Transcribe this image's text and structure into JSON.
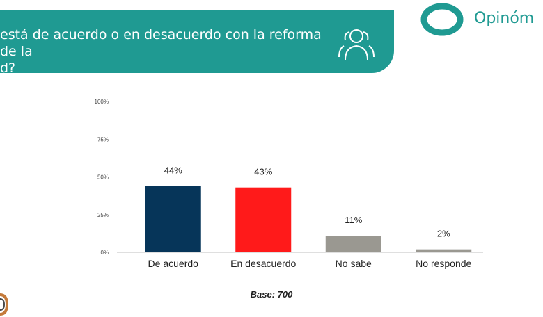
{
  "header": {
    "question_line1": "está de acuerdo o en desacuerdo con la  reforma de la",
    "question_line2": "d?",
    "icon": "people-group-icon"
  },
  "logo": {
    "text": "Opinóm",
    "icon": "ring-logo-icon"
  },
  "chart_data": {
    "type": "bar",
    "categories": [
      "De acuerdo",
      "En desacuerdo",
      "No sabe",
      "No responde"
    ],
    "values": [
      44,
      43,
      11,
      2
    ],
    "data_labels": [
      "44%",
      "43%",
      "11%",
      "2%"
    ],
    "colors": [
      "#063559",
      "#ff1a1a",
      "#9a9891",
      "#9a9891"
    ],
    "yticks": [
      "0%",
      "25%",
      "50%",
      "75%",
      "100%"
    ],
    "ylim": [
      0,
      100
    ],
    "grid": false
  },
  "footer": {
    "base": "Base: 700"
  },
  "colors": {
    "banner": "#1f9a92",
    "logo": "#1f9a92"
  }
}
